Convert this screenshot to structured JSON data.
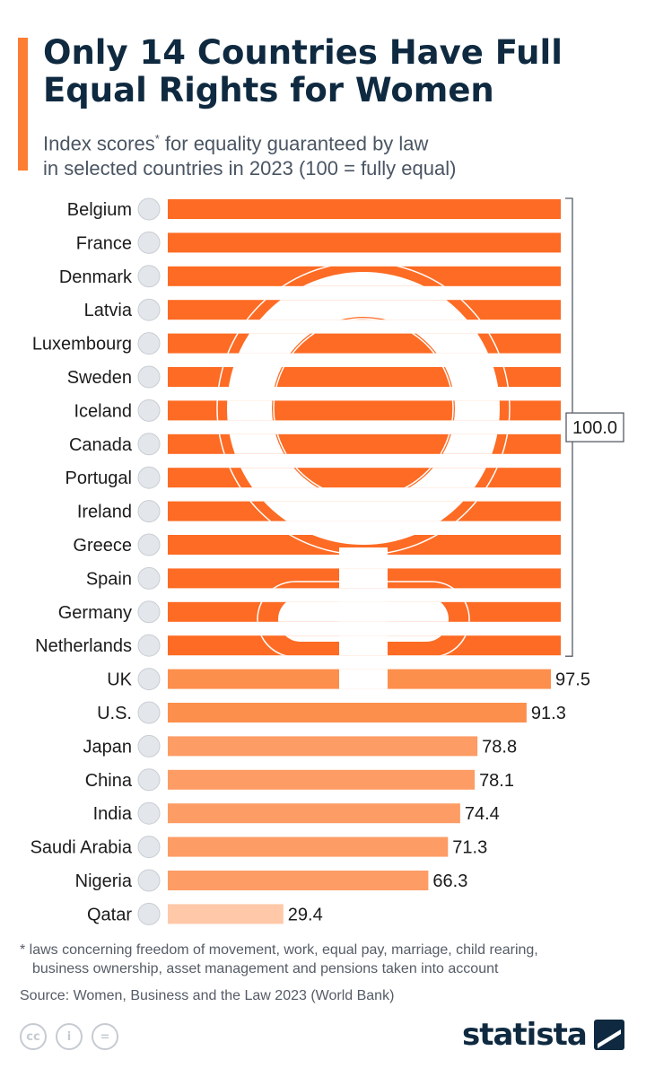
{
  "header": {
    "title": "Only 14 Countries Have Full Equal Rights for Women",
    "subtitle_line1_pre": "Index scores",
    "subtitle_sup": "*",
    "subtitle_line1_post": " for equality guaranteed by law",
    "subtitle_line2": "in selected countries in 2023 (100 = fully equal)"
  },
  "chart_data": {
    "type": "bar",
    "orientation": "horizontal",
    "title": "Only 14 Countries Have Full Equal Rights for Women",
    "subtitle": "Index scores* for equality guaranteed by law in selected countries in 2023 (100 = fully equal)",
    "xlim": [
      0,
      100
    ],
    "categories": [
      "Belgium",
      "France",
      "Denmark",
      "Latvia",
      "Luxembourg",
      "Sweden",
      "Iceland",
      "Canada",
      "Portugal",
      "Ireland",
      "Greece",
      "Spain",
      "Germany",
      "Netherlands",
      "UK",
      "U.S.",
      "Japan",
      "China",
      "India",
      "Saudi Arabia",
      "Nigeria",
      "Qatar"
    ],
    "values": [
      100.0,
      100.0,
      100.0,
      100.0,
      100.0,
      100.0,
      100.0,
      100.0,
      100.0,
      100.0,
      100.0,
      100.0,
      100.0,
      100.0,
      97.5,
      91.3,
      78.8,
      78.1,
      74.4,
      71.3,
      66.3,
      29.4
    ],
    "value_labels": [
      "",
      "",
      "",
      "",
      "",
      "",
      "",
      "",
      "",
      "",
      "",
      "",
      "",
      "",
      "97.5",
      "91.3",
      "78.8",
      "78.1",
      "74.4",
      "71.3",
      "66.3",
      "29.4"
    ],
    "bracket_label": "100.0",
    "colors": {
      "full": "#fd6b24",
      "mid": "#fd8f4d",
      "lower": "#fd9c65",
      "low": "#ffc8a8",
      "bracket": "#555c66",
      "watermark": "#ffffff"
    }
  },
  "footer": {
    "footnote_line1": "* laws concerning freedom of movement, work, equal pay, marriage, child rearing,",
    "footnote_line2": "business ownership, asset management and pensions taken into account",
    "source": "Source: Women, Business and the Law 2023 (World Bank)",
    "cc_labels": [
      "cc",
      "i",
      "="
    ],
    "brand": "statista"
  }
}
